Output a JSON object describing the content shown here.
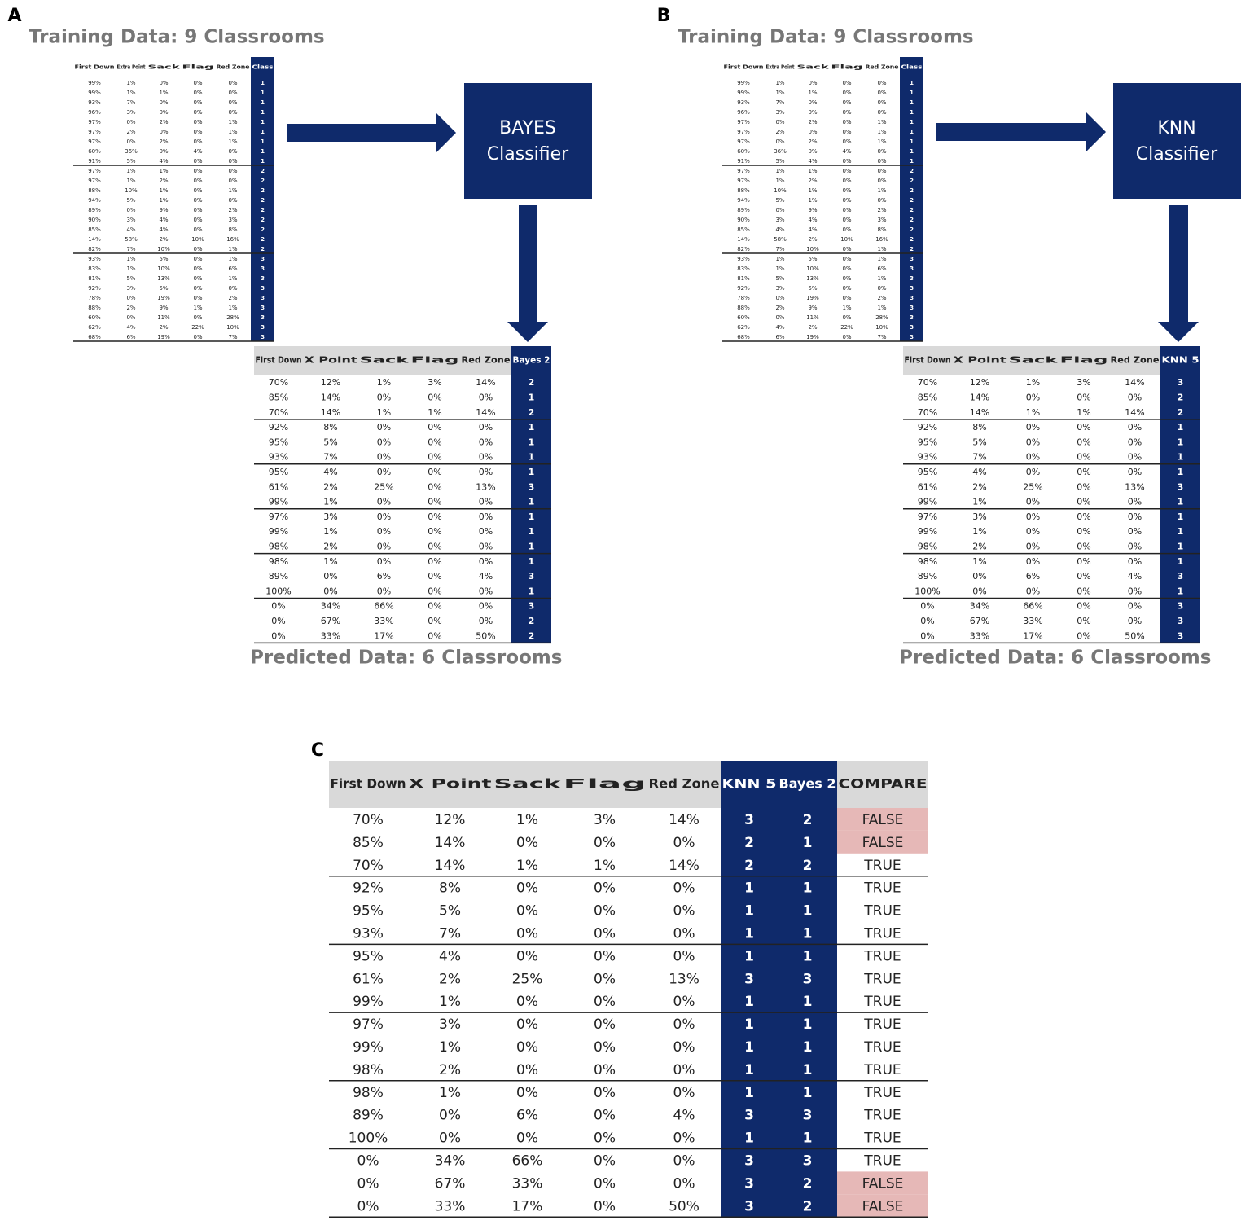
{
  "panel_a": {
    "label": "A",
    "training": {
      "title": "Training Data:  9 Classrooms",
      "headers": [
        "First Down",
        "Extra Point",
        "Sack",
        "Flag",
        "Red Zone",
        "Class"
      ],
      "rows": [
        [
          "99%",
          "1%",
          "0%",
          "0%",
          "0%",
          1
        ],
        [
          "99%",
          "1%",
          "1%",
          "0%",
          "0%",
          1
        ],
        [
          "93%",
          "7%",
          "0%",
          "0%",
          "0%",
          1
        ],
        [
          "96%",
          "3%",
          "0%",
          "0%",
          "0%",
          1
        ],
        [
          "97%",
          "0%",
          "2%",
          "0%",
          "1%",
          1
        ],
        [
          "97%",
          "2%",
          "0%",
          "0%",
          "1%",
          1
        ],
        [
          "97%",
          "0%",
          "2%",
          "0%",
          "1%",
          1
        ],
        [
          "60%",
          "36%",
          "0%",
          "4%",
          "0%",
          1
        ],
        [
          "91%",
          "5%",
          "4%",
          "0%",
          "0%",
          1
        ],
        [
          "97%",
          "1%",
          "1%",
          "0%",
          "0%",
          2
        ],
        [
          "97%",
          "1%",
          "2%",
          "0%",
          "0%",
          2
        ],
        [
          "88%",
          "10%",
          "1%",
          "0%",
          "1%",
          2
        ],
        [
          "94%",
          "5%",
          "1%",
          "0%",
          "0%",
          2
        ],
        [
          "89%",
          "0%",
          "9%",
          "0%",
          "2%",
          2
        ],
        [
          "90%",
          "3%",
          "4%",
          "0%",
          "3%",
          2
        ],
        [
          "85%",
          "4%",
          "4%",
          "0%",
          "8%",
          2
        ],
        [
          "14%",
          "58%",
          "2%",
          "10%",
          "16%",
          2
        ],
        [
          "82%",
          "7%",
          "10%",
          "0%",
          "1%",
          2
        ],
        [
          "93%",
          "1%",
          "5%",
          "0%",
          "1%",
          3
        ],
        [
          "83%",
          "1%",
          "10%",
          "0%",
          "6%",
          3
        ],
        [
          "81%",
          "5%",
          "13%",
          "0%",
          "1%",
          3
        ],
        [
          "92%",
          "3%",
          "5%",
          "0%",
          "0%",
          3
        ],
        [
          "78%",
          "0%",
          "19%",
          "0%",
          "2%",
          3
        ],
        [
          "88%",
          "2%",
          "9%",
          "1%",
          "1%",
          3
        ],
        [
          "60%",
          "0%",
          "11%",
          "0%",
          "28%",
          3
        ],
        [
          "62%",
          "4%",
          "2%",
          "22%",
          "10%",
          3
        ],
        [
          "68%",
          "6%",
          "19%",
          "0%",
          "7%",
          3
        ]
      ]
    },
    "classifier": [
      "BAYES",
      "Classifier"
    ],
    "predicted": {
      "title": "Predicted Data:  6 Classrooms",
      "headers": [
        "First Down",
        "X Point",
        "Sack",
        "Flag",
        "Red Zone",
        "Bayes 2"
      ],
      "rows": [
        [
          "70%",
          "12%",
          "1%",
          "3%",
          "14%",
          2
        ],
        [
          "85%",
          "14%",
          "0%",
          "0%",
          "0%",
          1
        ],
        [
          "70%",
          "14%",
          "1%",
          "1%",
          "14%",
          2
        ],
        [
          "92%",
          "8%",
          "0%",
          "0%",
          "0%",
          1
        ],
        [
          "95%",
          "5%",
          "0%",
          "0%",
          "0%",
          1
        ],
        [
          "93%",
          "7%",
          "0%",
          "0%",
          "0%",
          1
        ],
        [
          "95%",
          "4%",
          "0%",
          "0%",
          "0%",
          1
        ],
        [
          "61%",
          "2%",
          "25%",
          "0%",
          "13%",
          3
        ],
        [
          "99%",
          "1%",
          "0%",
          "0%",
          "0%",
          1
        ],
        [
          "97%",
          "3%",
          "0%",
          "0%",
          "0%",
          1
        ],
        [
          "99%",
          "1%",
          "0%",
          "0%",
          "0%",
          1
        ],
        [
          "98%",
          "2%",
          "0%",
          "0%",
          "0%",
          1
        ],
        [
          "98%",
          "1%",
          "0%",
          "0%",
          "0%",
          1
        ],
        [
          "89%",
          "0%",
          "6%",
          "0%",
          "4%",
          3
        ],
        [
          "100%",
          "0%",
          "0%",
          "0%",
          "0%",
          1
        ],
        [
          "0%",
          "34%",
          "66%",
          "0%",
          "0%",
          3
        ],
        [
          "0%",
          "67%",
          "33%",
          "0%",
          "0%",
          2
        ],
        [
          "0%",
          "33%",
          "17%",
          "0%",
          "50%",
          2
        ]
      ]
    }
  },
  "panel_b": {
    "label": "B",
    "training": {
      "title": "Training Data:  9 Classrooms",
      "headers": [
        "First Down",
        "Extra Point",
        "Sack",
        "Flag",
        "Red Zone",
        "Class"
      ],
      "rows": [
        [
          "99%",
          "1%",
          "0%",
          "0%",
          "0%",
          1
        ],
        [
          "99%",
          "1%",
          "1%",
          "0%",
          "0%",
          1
        ],
        [
          "93%",
          "7%",
          "0%",
          "0%",
          "0%",
          1
        ],
        [
          "96%",
          "3%",
          "0%",
          "0%",
          "0%",
          1
        ],
        [
          "97%",
          "0%",
          "2%",
          "0%",
          "1%",
          1
        ],
        [
          "97%",
          "2%",
          "0%",
          "0%",
          "1%",
          1
        ],
        [
          "97%",
          "0%",
          "2%",
          "0%",
          "1%",
          1
        ],
        [
          "60%",
          "36%",
          "0%",
          "4%",
          "0%",
          1
        ],
        [
          "91%",
          "5%",
          "4%",
          "0%",
          "0%",
          1
        ],
        [
          "97%",
          "1%",
          "1%",
          "0%",
          "0%",
          2
        ],
        [
          "97%",
          "1%",
          "2%",
          "0%",
          "0%",
          2
        ],
        [
          "88%",
          "10%",
          "1%",
          "0%",
          "1%",
          2
        ],
        [
          "94%",
          "5%",
          "1%",
          "0%",
          "0%",
          2
        ],
        [
          "89%",
          "0%",
          "9%",
          "0%",
          "2%",
          2
        ],
        [
          "90%",
          "3%",
          "4%",
          "0%",
          "3%",
          2
        ],
        [
          "85%",
          "4%",
          "4%",
          "0%",
          "8%",
          2
        ],
        [
          "14%",
          "58%",
          "2%",
          "10%",
          "16%",
          2
        ],
        [
          "82%",
          "7%",
          "10%",
          "0%",
          "1%",
          2
        ],
        [
          "93%",
          "1%",
          "5%",
          "0%",
          "1%",
          3
        ],
        [
          "83%",
          "1%",
          "10%",
          "0%",
          "6%",
          3
        ],
        [
          "81%",
          "5%",
          "13%",
          "0%",
          "1%",
          3
        ],
        [
          "92%",
          "3%",
          "5%",
          "0%",
          "0%",
          3
        ],
        [
          "78%",
          "0%",
          "19%",
          "0%",
          "2%",
          3
        ],
        [
          "88%",
          "2%",
          "9%",
          "1%",
          "1%",
          3
        ],
        [
          "60%",
          "0%",
          "11%",
          "0%",
          "28%",
          3
        ],
        [
          "62%",
          "4%",
          "2%",
          "22%",
          "10%",
          3
        ],
        [
          "68%",
          "6%",
          "19%",
          "0%",
          "7%",
          3
        ]
      ]
    },
    "classifier": [
      "KNN",
      "Classifier"
    ],
    "predicted": {
      "title": "Predicted Data:  6 Classrooms",
      "headers": [
        "First Down",
        "X Point",
        "Sack",
        "Flag",
        "Red Zone",
        "KNN 5"
      ],
      "rows": [
        [
          "70%",
          "12%",
          "1%",
          "3%",
          "14%",
          3
        ],
        [
          "85%",
          "14%",
          "0%",
          "0%",
          "0%",
          2
        ],
        [
          "70%",
          "14%",
          "1%",
          "1%",
          "14%",
          2
        ],
        [
          "92%",
          "8%",
          "0%",
          "0%",
          "0%",
          1
        ],
        [
          "95%",
          "5%",
          "0%",
          "0%",
          "0%",
          1
        ],
        [
          "93%",
          "7%",
          "0%",
          "0%",
          "0%",
          1
        ],
        [
          "95%",
          "4%",
          "0%",
          "0%",
          "0%",
          1
        ],
        [
          "61%",
          "2%",
          "25%",
          "0%",
          "13%",
          3
        ],
        [
          "99%",
          "1%",
          "0%",
          "0%",
          "0%",
          1
        ],
        [
          "97%",
          "3%",
          "0%",
          "0%",
          "0%",
          1
        ],
        [
          "99%",
          "1%",
          "0%",
          "0%",
          "0%",
          1
        ],
        [
          "98%",
          "2%",
          "0%",
          "0%",
          "0%",
          1
        ],
        [
          "98%",
          "1%",
          "0%",
          "0%",
          "0%",
          1
        ],
        [
          "89%",
          "0%",
          "6%",
          "0%",
          "4%",
          3
        ],
        [
          "100%",
          "0%",
          "0%",
          "0%",
          "0%",
          1
        ],
        [
          "0%",
          "34%",
          "66%",
          "0%",
          "0%",
          3
        ],
        [
          "0%",
          "67%",
          "33%",
          "0%",
          "0%",
          3
        ],
        [
          "0%",
          "33%",
          "17%",
          "0%",
          "50%",
          3
        ]
      ]
    }
  },
  "panel_c": {
    "label": "C",
    "headers": [
      "First Down",
      "X Point",
      "Sack",
      "Flag",
      "Red Zone",
      "KNN 5",
      "Bayes 2",
      "COMPARE"
    ],
    "rows": [
      [
        "70%",
        "12%",
        "1%",
        "3%",
        "14%",
        3,
        2,
        "FALSE"
      ],
      [
        "85%",
        "14%",
        "0%",
        "0%",
        "0%",
        2,
        1,
        "FALSE"
      ],
      [
        "70%",
        "14%",
        "1%",
        "1%",
        "14%",
        2,
        2,
        "TRUE"
      ],
      [
        "92%",
        "8%",
        "0%",
        "0%",
        "0%",
        1,
        1,
        "TRUE"
      ],
      [
        "95%",
        "5%",
        "0%",
        "0%",
        "0%",
        1,
        1,
        "TRUE"
      ],
      [
        "93%",
        "7%",
        "0%",
        "0%",
        "0%",
        1,
        1,
        "TRUE"
      ],
      [
        "95%",
        "4%",
        "0%",
        "0%",
        "0%",
        1,
        1,
        "TRUE"
      ],
      [
        "61%",
        "2%",
        "25%",
        "0%",
        "13%",
        3,
        3,
        "TRUE"
      ],
      [
        "99%",
        "1%",
        "0%",
        "0%",
        "0%",
        1,
        1,
        "TRUE"
      ],
      [
        "97%",
        "3%",
        "0%",
        "0%",
        "0%",
        1,
        1,
        "TRUE"
      ],
      [
        "99%",
        "1%",
        "0%",
        "0%",
        "0%",
        1,
        1,
        "TRUE"
      ],
      [
        "98%",
        "2%",
        "0%",
        "0%",
        "0%",
        1,
        1,
        "TRUE"
      ],
      [
        "98%",
        "1%",
        "0%",
        "0%",
        "0%",
        1,
        1,
        "TRUE"
      ],
      [
        "89%",
        "0%",
        "6%",
        "0%",
        "4%",
        3,
        3,
        "TRUE"
      ],
      [
        "100%",
        "0%",
        "0%",
        "0%",
        "0%",
        1,
        1,
        "TRUE"
      ],
      [
        "0%",
        "34%",
        "66%",
        "0%",
        "0%",
        3,
        3,
        "TRUE"
      ],
      [
        "0%",
        "67%",
        "33%",
        "0%",
        "0%",
        3,
        2,
        "FALSE"
      ],
      [
        "0%",
        "33%",
        "17%",
        "0%",
        "50%",
        3,
        2,
        "FALSE"
      ]
    ]
  }
}
